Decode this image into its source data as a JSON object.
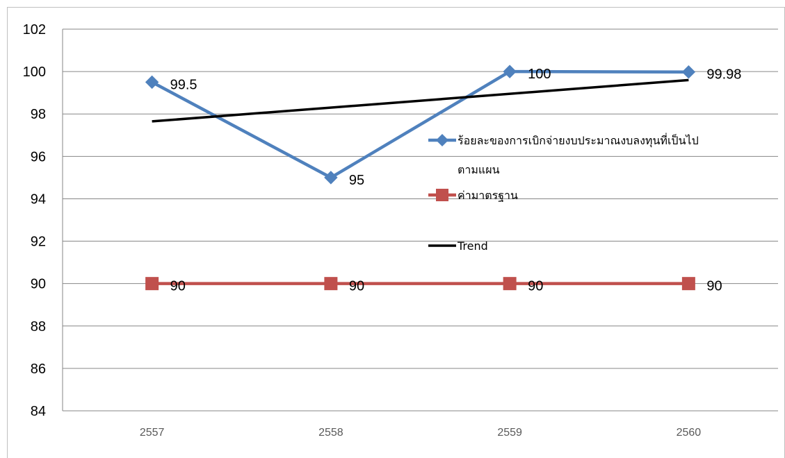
{
  "chart_data": {
    "type": "line",
    "title": "",
    "xlabel": "",
    "ylabel": "",
    "categories": [
      "2557",
      "2558",
      "2559",
      "2560"
    ],
    "ylim": [
      84,
      102
    ],
    "yticks": [
      84,
      86,
      88,
      90,
      92,
      94,
      96,
      98,
      100,
      102
    ],
    "grid": "horizontal",
    "legend_position": "right",
    "series": [
      {
        "name_line1": "ร้อยละของการเบิกจ่ายงบประมาณงบลงทุนที่เป็นไป",
        "name_line2": "ตามแผน",
        "values": [
          99.5,
          95,
          100,
          99.98
        ],
        "labels": [
          "99.5",
          "95",
          "100",
          "99.98"
        ],
        "color": "#4f81bd",
        "marker": "diamond"
      },
      {
        "name": "ค่ามาตรฐาน",
        "values": [
          90,
          90,
          90,
          90
        ],
        "labels": [
          "90",
          "90",
          "90",
          "90"
        ],
        "color": "#c0504d",
        "marker": "square"
      },
      {
        "name": "Trend",
        "values": [
          97.65,
          98.3,
          98.95,
          99.6
        ],
        "color": "#000000",
        "marker": "none"
      }
    ]
  }
}
